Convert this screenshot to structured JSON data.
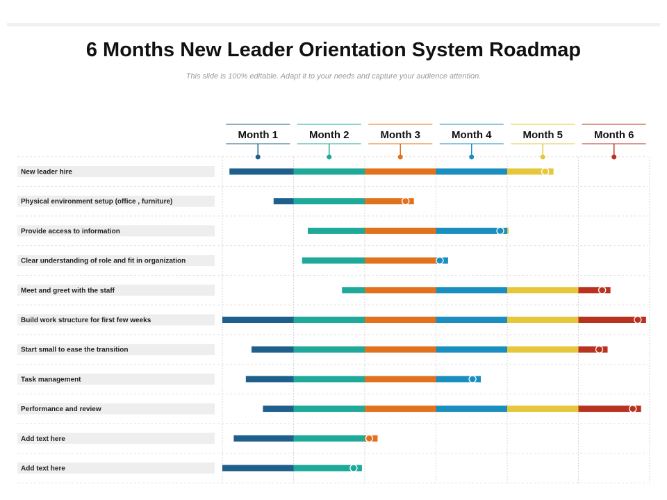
{
  "title": "6 Months New Leader Orientation System Roadmap",
  "subtitle": "This slide is 100% editable. Adapt it to your needs and capture your audience attention.",
  "chart_data": {
    "type": "gantt",
    "x_unit": "month",
    "xlim": [
      0,
      6
    ],
    "months": [
      {
        "label": "Month 1",
        "color": "#1f5f8b"
      },
      {
        "label": "Month 2",
        "color": "#1ea99a"
      },
      {
        "label": "Month 3",
        "color": "#e2711d"
      },
      {
        "label": "Month 4",
        "color": "#1a8ebf"
      },
      {
        "label": "Month 5",
        "color": "#e6c73c"
      },
      {
        "label": "Month 6",
        "color": "#b8321f"
      }
    ],
    "tasks": [
      {
        "label": "New leader hire",
        "start": 0.1,
        "end": 4.65
      },
      {
        "label": "Physical environment setup (office , furniture)",
        "start": 0.72,
        "end": 2.69
      },
      {
        "label": "Provide access to information",
        "start": 1.2,
        "end": 4.02
      },
      {
        "label": "Clear understanding of role and fit in organization",
        "start": 1.12,
        "end": 3.17
      },
      {
        "label": "Meet and greet with the staff",
        "start": 1.68,
        "end": 5.45
      },
      {
        "label": "Build work structure for first few weeks",
        "start": 0.0,
        "end": 5.95
      },
      {
        "label": "Start small to ease the transition",
        "start": 0.41,
        "end": 5.41
      },
      {
        "label": "Task management",
        "start": 0.33,
        "end": 3.63
      },
      {
        "label": "Performance and review",
        "start": 0.57,
        "end": 5.88
      },
      {
        "label": "Add text here",
        "start": 0.16,
        "end": 2.18
      },
      {
        "label": "Add text here",
        "start": 0.0,
        "end": 1.96
      }
    ]
  }
}
